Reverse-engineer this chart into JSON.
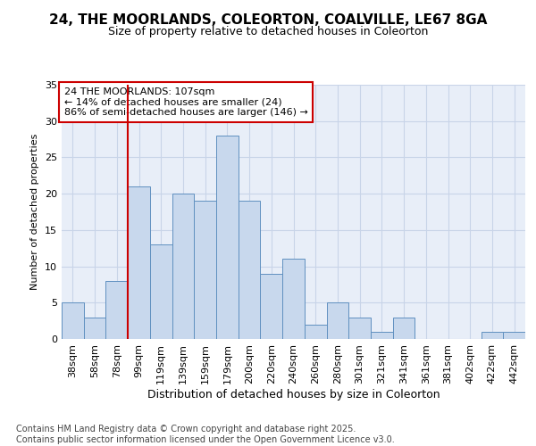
{
  "title1": "24, THE MOORLANDS, COLEORTON, COALVILLE, LE67 8GA",
  "title2": "Size of property relative to detached houses in Coleorton",
  "xlabel": "Distribution of detached houses by size in Coleorton",
  "ylabel": "Number of detached properties",
  "categories": [
    "38sqm",
    "58sqm",
    "78sqm",
    "99sqm",
    "119sqm",
    "139sqm",
    "159sqm",
    "179sqm",
    "200sqm",
    "220sqm",
    "240sqm",
    "260sqm",
    "280sqm",
    "301sqm",
    "321sqm",
    "341sqm",
    "361sqm",
    "381sqm",
    "402sqm",
    "422sqm",
    "442sqm"
  ],
  "values": [
    5,
    3,
    8,
    21,
    13,
    20,
    19,
    28,
    19,
    9,
    11,
    2,
    5,
    3,
    1,
    3,
    0,
    0,
    0,
    1,
    1
  ],
  "bar_color": "#c8d8ed",
  "bar_edge_color": "#6090c0",
  "grid_color": "#c8d4e8",
  "background_color": "#ffffff",
  "plot_bg_color": "#e8eef8",
  "vline_color": "#cc0000",
  "vline_x_idx": 3,
  "annotation_text": "24 THE MOORLANDS: 107sqm\n← 14% of detached houses are smaller (24)\n86% of semi-detached houses are larger (146) →",
  "annotation_box_color": "#ffffff",
  "annotation_box_edge": "#cc0000",
  "footer": "Contains HM Land Registry data © Crown copyright and database right 2025.\nContains public sector information licensed under the Open Government Licence v3.0.",
  "ylim": [
    0,
    35
  ],
  "yticks": [
    0,
    5,
    10,
    15,
    20,
    25,
    30,
    35
  ],
  "title1_fontsize": 11,
  "title2_fontsize": 9,
  "xlabel_fontsize": 9,
  "ylabel_fontsize": 8,
  "tick_fontsize": 8,
  "annot_fontsize": 8,
  "footer_fontsize": 7
}
